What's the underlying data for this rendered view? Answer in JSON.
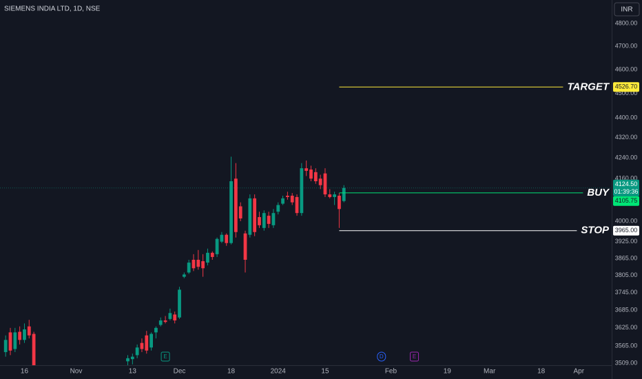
{
  "chart_data": {
    "type": "candlestick",
    "title": "SIEMENS INDIA LTD, 1D, NSE",
    "currency": "INR",
    "log_scale": true,
    "ylim": [
      3489,
      4905
    ],
    "yticks": [
      {
        "value": 3509,
        "label": "3509.00"
      },
      {
        "value": 3565,
        "label": "3565.00"
      },
      {
        "value": 3625,
        "label": "3625.00"
      },
      {
        "value": 3685,
        "label": "3685.00"
      },
      {
        "value": 3745,
        "label": "3745.00"
      },
      {
        "value": 3805,
        "label": "3805.00"
      },
      {
        "value": 3865,
        "label": "3865.00"
      },
      {
        "value": 3925,
        "label": "3925.00"
      },
      {
        "value": 4000,
        "label": "4000.00"
      },
      {
        "value": 4160,
        "label": "4160.00"
      },
      {
        "value": 4240,
        "label": "4240.00"
      },
      {
        "value": 4320,
        "label": "4320.00"
      },
      {
        "value": 4400,
        "label": "4400.00"
      },
      {
        "value": 4500,
        "label": "4500.00"
      },
      {
        "value": 4600,
        "label": "4600.00"
      },
      {
        "value": 4700,
        "label": "4700.00"
      },
      {
        "value": 4800,
        "label": "4800.00"
      }
    ],
    "xlim": [
      -1.2,
      129
    ],
    "xticks": [
      {
        "value": 4,
        "label": "16"
      },
      {
        "value": 15,
        "label": "Nov"
      },
      {
        "value": 27,
        "label": "13"
      },
      {
        "value": 37,
        "label": "Dec"
      },
      {
        "value": 48,
        "label": "18"
      },
      {
        "value": 58,
        "label": "2024"
      },
      {
        "value": 68,
        "label": "15"
      },
      {
        "value": 82,
        "label": "Feb"
      },
      {
        "value": 94,
        "label": "19"
      },
      {
        "value": 103,
        "label": "Mar"
      },
      {
        "value": 114,
        "label": "18"
      },
      {
        "value": 122,
        "label": "Apr"
      }
    ],
    "up_color": "#089981",
    "down_color": "#f23645",
    "candles": {
      "x": [
        0,
        1,
        2,
        3,
        4,
        5,
        6,
        26,
        27,
        28,
        29,
        30,
        31,
        32,
        33,
        34,
        35,
        36,
        37,
        38,
        39,
        40,
        41,
        42,
        43,
        44,
        45,
        46,
        47,
        48,
        49,
        50,
        51,
        52,
        53,
        54,
        55,
        56,
        57,
        58,
        59,
        60,
        61,
        62,
        63,
        64,
        65,
        66,
        67,
        68,
        69,
        70,
        71,
        72
      ],
      "open": [
        3545,
        3610,
        3555,
        3612,
        3585,
        3630,
        3605,
        3515,
        3522,
        3535,
        3575,
        3600,
        3560,
        3610,
        3635,
        3650,
        3655,
        3670,
        3660,
        3800,
        3815,
        3860,
        3860,
        3855,
        3850,
        3885,
        3880,
        3925,
        3950,
        3920,
        4160,
        4055,
        3955,
        3950,
        4085,
        4015,
        3975,
        4020,
        3985,
        4035,
        4065,
        4095,
        4095,
        4090,
        4030,
        4200,
        4195,
        4185,
        4160,
        4180,
        4100,
        4090,
        4095,
        4075
      ],
      "high": [
        3600,
        3625,
        3625,
        3630,
        3640,
        3652,
        3612,
        3535,
        3540,
        3570,
        3590,
        3615,
        3610,
        3630,
        3660,
        3665,
        3690,
        3680,
        3765,
        3815,
        3860,
        3880,
        3895,
        3880,
        3900,
        3890,
        3940,
        3960,
        3955,
        4245,
        4220,
        4070,
        3965,
        4100,
        4100,
        4035,
        4040,
        4035,
        4045,
        4070,
        4095,
        4110,
        4105,
        4100,
        4220,
        4230,
        4210,
        4200,
        4175,
        4200,
        4120,
        4110,
        4105,
        4135
      ],
      "low": [
        3530,
        3535,
        3545,
        3570,
        3575,
        3590,
        3480,
        3500,
        3505,
        3525,
        3545,
        3540,
        3550,
        3590,
        3630,
        3640,
        3650,
        3640,
        3655,
        3795,
        3810,
        3820,
        3825,
        3800,
        3840,
        3860,
        3870,
        3920,
        3910,
        3915,
        3940,
        4000,
        3815,
        3940,
        3945,
        3975,
        3965,
        3975,
        3975,
        4025,
        4060,
        4080,
        4060,
        4020,
        4020,
        4170,
        4150,
        4140,
        4120,
        4090,
        4085,
        4060,
        3975,
        4070
      ],
      "close": [
        3585,
        3550,
        3610,
        3585,
        3620,
        3600,
        3490,
        3525,
        3530,
        3560,
        3555,
        3550,
        3605,
        3625,
        3650,
        3645,
        3675,
        3650,
        3755,
        3808,
        3850,
        3830,
        3835,
        3830,
        3885,
        3870,
        3935,
        3950,
        3920,
        4150,
        3960,
        4010,
        3860,
        4085,
        3960,
        3985,
        4030,
        3990,
        4030,
        4060,
        4085,
        4090,
        4070,
        4030,
        4200,
        4190,
        4160,
        4150,
        4135,
        4100,
        4090,
        4100,
        4045,
        4124.5
      ]
    },
    "last_price": {
      "value": 4124.5,
      "label": "4124.50",
      "countdown": "01:39:36"
    },
    "levels": [
      {
        "name": "TARGET",
        "value": 4526.7,
        "value_label": "4526.70",
        "color": "#ffeb3b",
        "from_x": 71
      },
      {
        "name": "BUY",
        "value": 4105.75,
        "value_label": "4105.75",
        "color": "#00e676",
        "from_x": 71
      },
      {
        "name": "STOP",
        "value": 3965,
        "value_label": "3965.00",
        "color": "#ffffff",
        "from_x": 71
      }
    ],
    "events": [
      {
        "x": 34,
        "label": "E",
        "color": "#089981"
      },
      {
        "x": 80,
        "label": "D",
        "color": "#2962ff"
      },
      {
        "x": 87,
        "label": "E",
        "color": "#9c27b0"
      }
    ]
  }
}
